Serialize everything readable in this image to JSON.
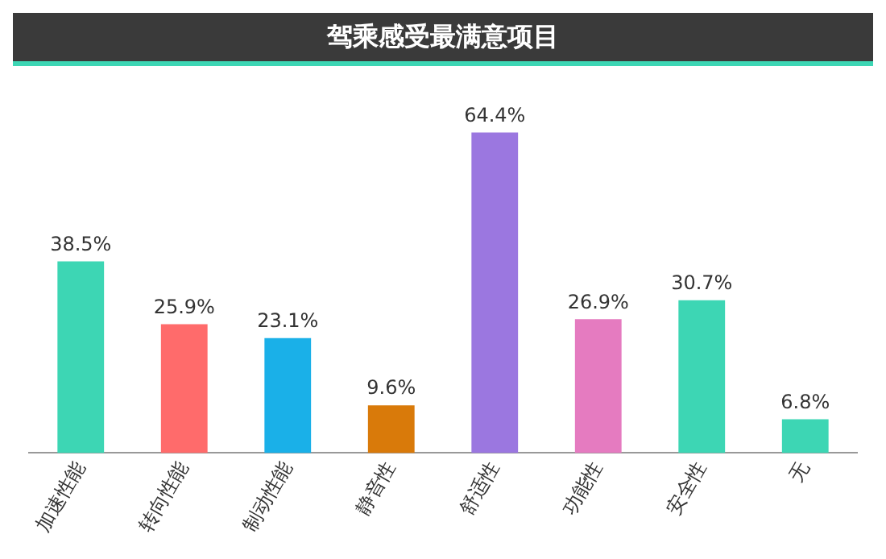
{
  "chart_data": {
    "type": "bar",
    "title": "驾乘感受最满意项目",
    "categories": [
      "加速性能",
      "转向性能",
      "制动性能",
      "静音性",
      "舒适性",
      "功能性",
      "安全性",
      "无"
    ],
    "values": [
      38.5,
      25.9,
      23.1,
      9.6,
      64.4,
      26.9,
      30.7,
      6.8
    ],
    "colors": [
      "#3dd6b4",
      "#ff6b6b",
      "#1ab0e8",
      "#d97a0a",
      "#9b77e0",
      "#e57bc0",
      "#3dd6b4",
      "#3dd6b4"
    ],
    "value_labels": [
      "38.5%",
      "25.9%",
      "23.1%",
      "9.6%",
      "64.4%",
      "26.9%",
      "30.7%",
      "6.8%"
    ],
    "grid": false,
    "legend": false
  }
}
